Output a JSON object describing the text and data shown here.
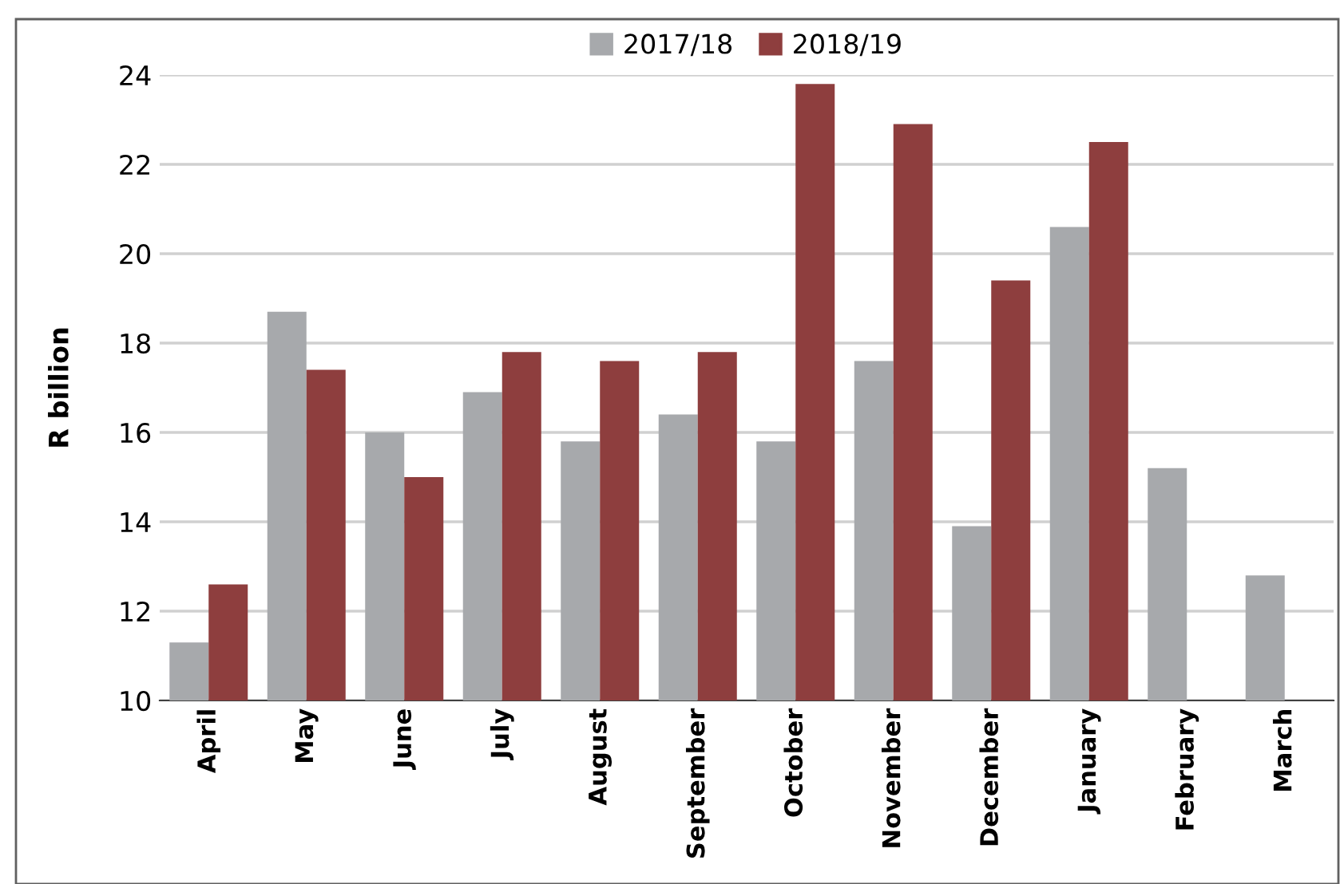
{
  "chart_data": {
    "type": "bar",
    "ylabel": "R billion",
    "categories": [
      "April",
      "May",
      "June",
      "July",
      "August",
      "September",
      "October",
      "November",
      "December",
      "January",
      "February",
      "March"
    ],
    "series": [
      {
        "name": "2017/18",
        "color": "#a7a9ac",
        "values": [
          11.3,
          18.7,
          16.0,
          16.9,
          15.8,
          16.4,
          15.8,
          17.6,
          13.9,
          20.6,
          15.2,
          12.8
        ]
      },
      {
        "name": "2018/19",
        "color": "#8e3e3e",
        "values": [
          12.6,
          17.4,
          15.0,
          17.8,
          17.6,
          17.8,
          23.8,
          22.9,
          19.4,
          22.5,
          null,
          null
        ]
      }
    ],
    "ylim": [
      10,
      24
    ],
    "yticks": [
      10,
      12,
      14,
      16,
      18,
      20,
      22,
      24
    ],
    "grid": "y",
    "legend": "top"
  }
}
